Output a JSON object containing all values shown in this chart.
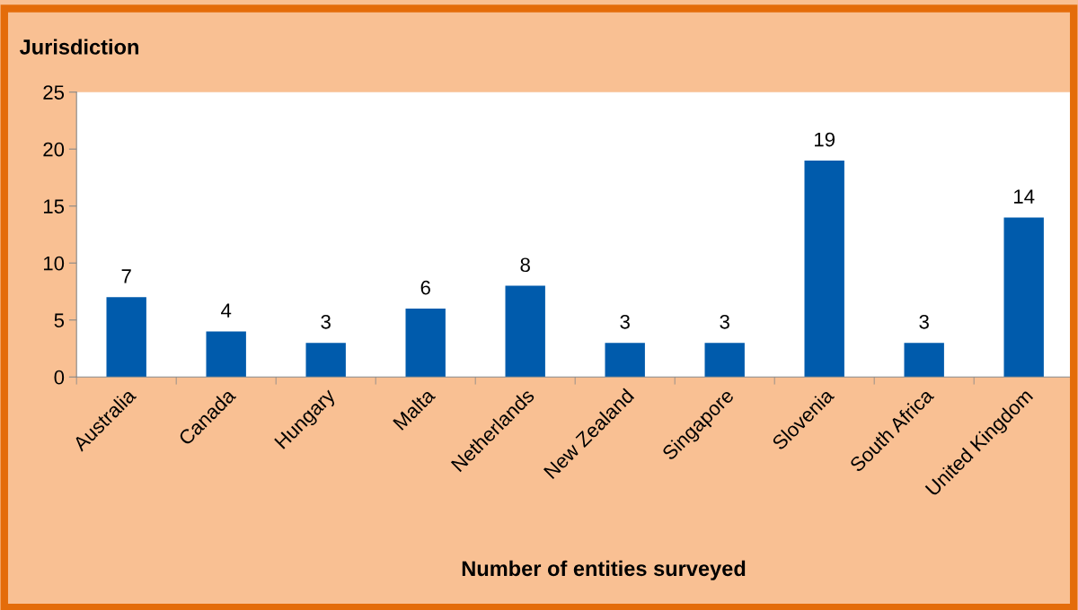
{
  "chart_data": {
    "type": "bar",
    "ylabel": "Jurisdiction",
    "xlabel": "Number of entities surveyed",
    "categories": [
      "Australia",
      "Canada",
      "Hungary",
      "Malta",
      "Netherlands",
      "New Zealand",
      "Singapore",
      "Slovenia",
      "South Africa",
      "United Kingdom"
    ],
    "values": [
      7,
      4,
      3,
      6,
      8,
      3,
      3,
      19,
      3,
      14
    ],
    "color": "#005bac",
    "ylim": [
      0,
      25
    ],
    "yticks": [
      0,
      5,
      10,
      15,
      20,
      25
    ],
    "grid": false,
    "data_labels": true
  }
}
